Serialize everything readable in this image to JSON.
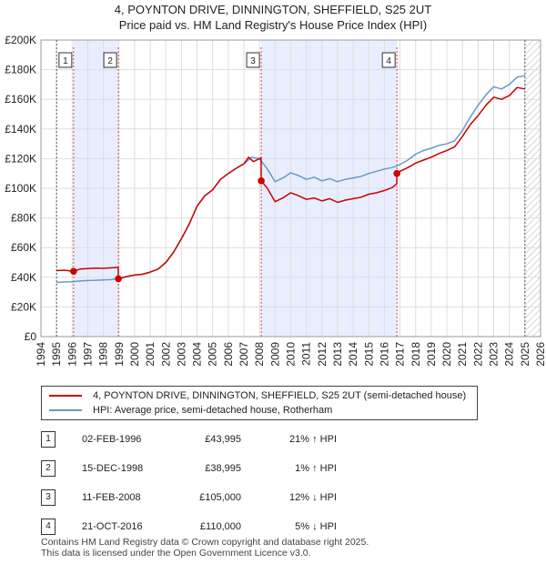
{
  "title": {
    "line1": "4, POYNTON DRIVE, DINNINGTON, SHEFFIELD, S25 2UT",
    "line2": "Price paid vs. HM Land Registry's House Price Index (HPI)"
  },
  "colors": {
    "property": "#cc0000",
    "hpi": "#6699cc",
    "shade": "#e8eeff",
    "grid": "#dddddd"
  },
  "chart_data": {
    "type": "line",
    "x_range": [
      1994,
      2026
    ],
    "y_range": [
      0,
      200000
    ],
    "y_ticks": [
      0,
      20000,
      40000,
      60000,
      80000,
      100000,
      120000,
      140000,
      160000,
      180000,
      200000
    ],
    "y_tick_labels": [
      "£0",
      "£20K",
      "£40K",
      "£60K",
      "£80K",
      "£100K",
      "£120K",
      "£140K",
      "£160K",
      "£180K",
      "£200K"
    ],
    "x_tick_labels": [
      "1994",
      "1995",
      "1996",
      "1997",
      "1998",
      "1999",
      "2000",
      "2001",
      "2002",
      "2003",
      "2004",
      "2005",
      "2006",
      "2007",
      "2008",
      "2009",
      "2010",
      "2011",
      "2012",
      "2013",
      "2014",
      "2015",
      "2016",
      "2017",
      "2018",
      "2019",
      "2020",
      "2021",
      "2022",
      "2023",
      "2024",
      "2025",
      "2026"
    ],
    "shaded_periods": [
      [
        1996.08,
        1998.96
      ],
      [
        2008.11,
        2016.8
      ]
    ],
    "future_hatch_from": 2025.0,
    "sales": [
      {
        "num": "1",
        "year": 1996.09,
        "price": 43995
      },
      {
        "num": "2",
        "year": 1998.96,
        "price": 38995
      },
      {
        "num": "3",
        "year": 2008.11,
        "price": 105000
      },
      {
        "num": "4",
        "year": 2016.8,
        "price": 110000
      }
    ],
    "series": [
      {
        "name": "4, POYNTON DRIVE, DINNINGTON, SHEFFIELD, S25 2UT (semi-detached house)",
        "color": "#cc0000",
        "points": [
          [
            1995.0,
            44500
          ],
          [
            1995.5,
            44800
          ],
          [
            1996.09,
            43995
          ],
          [
            1996.5,
            45500
          ],
          [
            1997.0,
            45800
          ],
          [
            1997.5,
            46200
          ],
          [
            1998.0,
            46000
          ],
          [
            1998.5,
            46400
          ],
          [
            1998.95,
            46700
          ],
          [
            1998.96,
            38995
          ],
          [
            1999.5,
            40500
          ],
          [
            2000.0,
            41500
          ],
          [
            2000.5,
            42000
          ],
          [
            2001.0,
            43500
          ],
          [
            2001.5,
            45500
          ],
          [
            2002.0,
            50000
          ],
          [
            2002.5,
            57000
          ],
          [
            2003.0,
            66000
          ],
          [
            2003.5,
            76000
          ],
          [
            2004.0,
            88000
          ],
          [
            2004.5,
            95000
          ],
          [
            2005.0,
            99000
          ],
          [
            2005.5,
            106000
          ],
          [
            2006.0,
            110000
          ],
          [
            2006.5,
            113500
          ],
          [
            2007.0,
            116500
          ],
          [
            2007.3,
            121000
          ],
          [
            2007.6,
            118000
          ],
          [
            2008.0,
            120000
          ],
          [
            2008.1,
            120500
          ],
          [
            2008.11,
            105000
          ],
          [
            2008.5,
            100000
          ],
          [
            2009.0,
            91000
          ],
          [
            2009.5,
            93500
          ],
          [
            2010.0,
            97000
          ],
          [
            2010.5,
            95000
          ],
          [
            2011.0,
            92500
          ],
          [
            2011.5,
            93500
          ],
          [
            2012.0,
            91500
          ],
          [
            2012.5,
            93000
          ],
          [
            2013.0,
            90500
          ],
          [
            2013.5,
            92000
          ],
          [
            2014.0,
            93000
          ],
          [
            2014.5,
            94000
          ],
          [
            2015.0,
            96000
          ],
          [
            2015.5,
            97000
          ],
          [
            2016.0,
            98500
          ],
          [
            2016.5,
            100500
          ],
          [
            2016.79,
            103000
          ],
          [
            2016.8,
            110000
          ],
          [
            2017.0,
            111500
          ],
          [
            2017.5,
            114000
          ],
          [
            2018.0,
            117000
          ],
          [
            2018.5,
            119000
          ],
          [
            2019.0,
            121000
          ],
          [
            2019.5,
            123500
          ],
          [
            2020.0,
            125500
          ],
          [
            2020.5,
            128000
          ],
          [
            2021.0,
            135000
          ],
          [
            2021.5,
            143000
          ],
          [
            2022.0,
            149000
          ],
          [
            2022.5,
            156000
          ],
          [
            2023.0,
            161500
          ],
          [
            2023.5,
            160000
          ],
          [
            2024.0,
            162500
          ],
          [
            2024.5,
            168000
          ],
          [
            2025.0,
            167000
          ]
        ]
      },
      {
        "name": "HPI: Average price, semi-detached house, Rotherham",
        "color": "#6699cc",
        "points": [
          [
            1995.0,
            36500
          ],
          [
            1995.5,
            36800
          ],
          [
            1996.0,
            37000
          ],
          [
            1996.5,
            37500
          ],
          [
            1997.0,
            37800
          ],
          [
            1997.5,
            38000
          ],
          [
            1998.0,
            38200
          ],
          [
            1998.5,
            38400
          ],
          [
            1999.0,
            39300
          ],
          [
            1999.5,
            40500
          ],
          [
            2000.0,
            41500
          ],
          [
            2000.5,
            42000
          ],
          [
            2001.0,
            43500
          ],
          [
            2001.5,
            45500
          ],
          [
            2002.0,
            50000
          ],
          [
            2002.5,
            57000
          ],
          [
            2003.0,
            66000
          ],
          [
            2003.5,
            76000
          ],
          [
            2004.0,
            88000
          ],
          [
            2004.5,
            95000
          ],
          [
            2005.0,
            99000
          ],
          [
            2005.5,
            106000
          ],
          [
            2006.0,
            110000
          ],
          [
            2006.5,
            113500
          ],
          [
            2007.0,
            116500
          ],
          [
            2007.5,
            121000
          ],
          [
            2008.0,
            120000
          ],
          [
            2008.5,
            113000
          ],
          [
            2009.0,
            104500
          ],
          [
            2009.5,
            107000
          ],
          [
            2010.0,
            110500
          ],
          [
            2010.5,
            108500
          ],
          [
            2011.0,
            106000
          ],
          [
            2011.5,
            107500
          ],
          [
            2012.0,
            105000
          ],
          [
            2012.5,
            106500
          ],
          [
            2013.0,
            104500
          ],
          [
            2013.5,
            106000
          ],
          [
            2014.0,
            107000
          ],
          [
            2014.5,
            108000
          ],
          [
            2015.0,
            110000
          ],
          [
            2015.5,
            111500
          ],
          [
            2016.0,
            113000
          ],
          [
            2016.5,
            114000
          ],
          [
            2017.0,
            116000
          ],
          [
            2017.5,
            119000
          ],
          [
            2018.0,
            123000
          ],
          [
            2018.5,
            125500
          ],
          [
            2019.0,
            127000
          ],
          [
            2019.5,
            129000
          ],
          [
            2020.0,
            130000
          ],
          [
            2020.5,
            132000
          ],
          [
            2021.0,
            139000
          ],
          [
            2021.5,
            148000
          ],
          [
            2022.0,
            156000
          ],
          [
            2022.5,
            163000
          ],
          [
            2023.0,
            168500
          ],
          [
            2023.5,
            167000
          ],
          [
            2024.0,
            170000
          ],
          [
            2024.5,
            175000
          ],
          [
            2025.0,
            176000
          ]
        ]
      }
    ]
  },
  "legend": {
    "property_label": "4, POYNTON DRIVE, DINNINGTON, SHEFFIELD, S25 2UT (semi-detached house)",
    "hpi_label": "HPI: Average price, semi-detached house, Rotherham"
  },
  "sales_table": [
    {
      "num": "1",
      "date": "02-FEB-1996",
      "price": "£43,995",
      "hpi": "21% ↑ HPI"
    },
    {
      "num": "2",
      "date": "15-DEC-1998",
      "price": "£38,995",
      "hpi": "1% ↑ HPI"
    },
    {
      "num": "3",
      "date": "11-FEB-2008",
      "price": "£105,000",
      "hpi": "12% ↓ HPI"
    },
    {
      "num": "4",
      "date": "21-OCT-2016",
      "price": "£110,000",
      "hpi": "5% ↓ HPI"
    }
  ],
  "footer": {
    "line1": "Contains HM Land Registry data © Crown copyright and database right 2025.",
    "line2": "This data is licensed under the Open Government Licence v3.0."
  }
}
